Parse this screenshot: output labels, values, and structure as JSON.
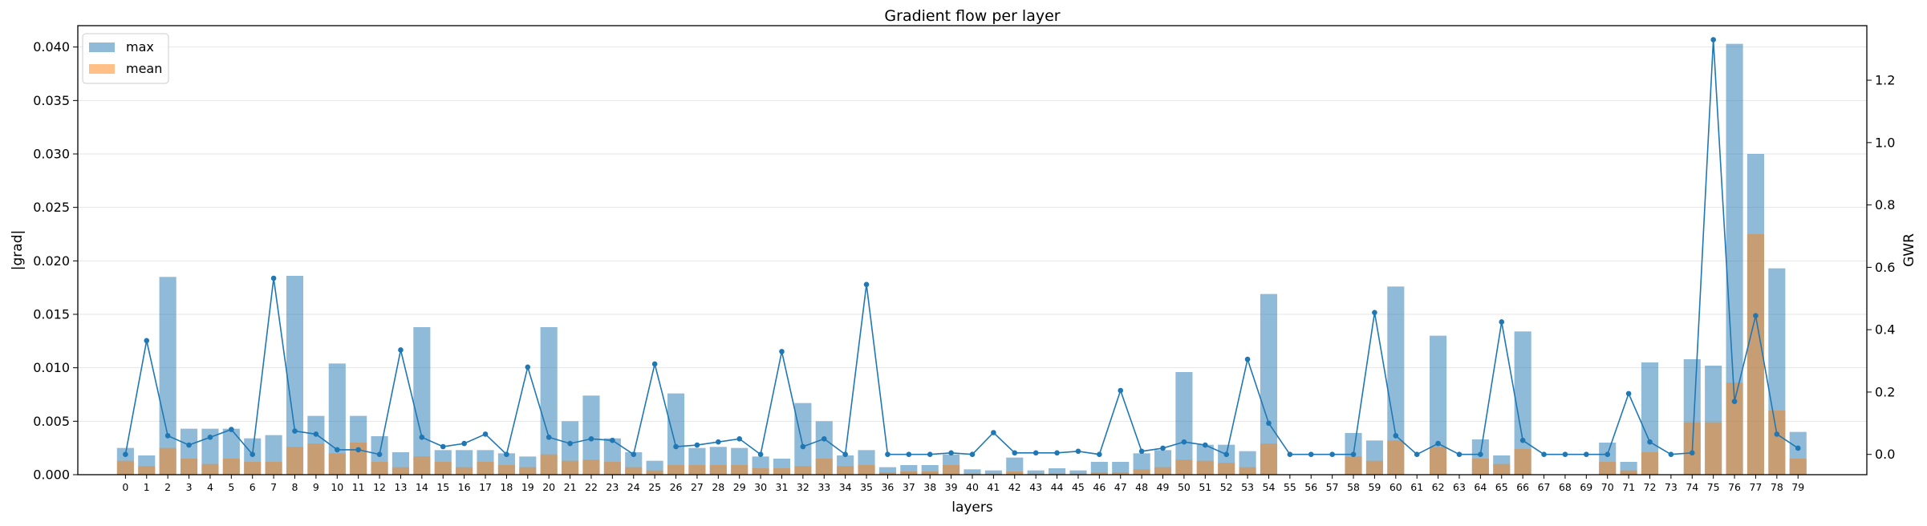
{
  "chart_data": {
    "type": "bar",
    "title": "Gradient flow per layer",
    "xlabel": "layers",
    "ylabel": "|grad|",
    "y2label": "GWR",
    "ylim": [
      0,
      0.042
    ],
    "y2lim": [
      -0.065,
      1.375
    ],
    "yticks": [
      "0.000",
      "0.005",
      "0.010",
      "0.015",
      "0.020",
      "0.025",
      "0.030",
      "0.035",
      "0.040"
    ],
    "y2ticks": [
      "0.0",
      "0.2",
      "0.4",
      "0.6",
      "0.8",
      "1.0",
      "1.2"
    ],
    "grid": "horizontal",
    "legend_position": "top-left",
    "categories": [
      "0",
      "1",
      "2",
      "3",
      "4",
      "5",
      "6",
      "7",
      "8",
      "9",
      "10",
      "11",
      "12",
      "13",
      "14",
      "15",
      "16",
      "17",
      "18",
      "19",
      "20",
      "21",
      "22",
      "23",
      "24",
      "25",
      "26",
      "27",
      "28",
      "29",
      "30",
      "31",
      "32",
      "33",
      "34",
      "35",
      "36",
      "37",
      "38",
      "39",
      "40",
      "41",
      "42",
      "43",
      "44",
      "45",
      "46",
      "47",
      "48",
      "49",
      "50",
      "51",
      "52",
      "53",
      "54",
      "55",
      "56",
      "57",
      "58",
      "59",
      "60",
      "61",
      "62",
      "63",
      "64",
      "65",
      "66",
      "67",
      "68",
      "69",
      "70",
      "71",
      "72",
      "73",
      "74",
      "75",
      "76",
      "77",
      "78",
      "79"
    ],
    "series": [
      {
        "name": "max",
        "kind": "bar",
        "color": "#1f77b4",
        "values": [
          0.0025,
          0.0018,
          0.0185,
          0.0043,
          0.0043,
          0.0043,
          0.0034,
          0.0037,
          0.0186,
          0.0055,
          0.0104,
          0.0055,
          0.0036,
          0.0021,
          0.0138,
          0.0023,
          0.0023,
          0.0023,
          0.002,
          0.0017,
          0.0138,
          0.005,
          0.0074,
          0.0034,
          0.0021,
          0.0013,
          0.0076,
          0.0025,
          0.0026,
          0.0025,
          0.0017,
          0.0015,
          0.0067,
          0.005,
          0.0018,
          0.0023,
          0.0007,
          0.0009,
          0.0009,
          0.0019,
          0.0005,
          0.0004,
          0.0016,
          0.0004,
          0.0006,
          0.0004,
          0.0012,
          0.0012,
          0.002,
          0.0023,
          0.0096,
          0.0028,
          0.0028,
          0.0022,
          0.0169,
          0.0,
          0.0,
          0.0,
          0.0039,
          0.0032,
          0.0176,
          0.0,
          0.013,
          0.0,
          0.0033,
          0.0018,
          0.0134,
          0.0,
          0.0,
          0.0,
          0.003,
          0.0012,
          0.0105,
          0.0,
          0.0108,
          0.0102,
          0.0403,
          0.03,
          0.0193,
          0.004
        ]
      },
      {
        "name": "mean",
        "kind": "bar",
        "color": "#ff7f0e",
        "values": [
          0.0013,
          0.0008,
          0.0025,
          0.0015,
          0.001,
          0.0015,
          0.0012,
          0.0012,
          0.0026,
          0.0029,
          0.002,
          0.003,
          0.0012,
          0.0007,
          0.0017,
          0.0012,
          0.0007,
          0.0012,
          0.0009,
          0.0007,
          0.0019,
          0.0013,
          0.0014,
          0.0012,
          0.0007,
          0.0004,
          0.0009,
          0.0009,
          0.0009,
          0.0009,
          0.0006,
          0.0006,
          0.0008,
          0.0015,
          0.0008,
          0.0009,
          0.0002,
          0.0003,
          0.0003,
          0.0009,
          0.0001,
          0.0001,
          0.0003,
          0.0001,
          0.0001,
          0.0001,
          0.0002,
          0.0002,
          0.0005,
          0.0007,
          0.0014,
          0.0013,
          0.0011,
          0.0007,
          0.0029,
          0.0,
          0.0,
          0.0,
          0.0017,
          0.0013,
          0.0032,
          0.0,
          0.0026,
          0.0,
          0.0015,
          0.001,
          0.0024,
          0.0,
          0.0,
          0.0,
          0.0012,
          0.0004,
          0.0021,
          0.0,
          0.0049,
          0.0049,
          0.0086,
          0.0225,
          0.006,
          0.0015
        ]
      },
      {
        "name": "",
        "kind": "line",
        "axis": "right",
        "color": "#1f77b4",
        "values": [
          0.0,
          0.365,
          0.06,
          0.03,
          0.055,
          0.08,
          0.0,
          0.565,
          0.075,
          0.065,
          0.015,
          0.015,
          0.0,
          0.335,
          0.055,
          0.025,
          0.035,
          0.065,
          0.0,
          0.28,
          0.055,
          0.035,
          0.05,
          0.045,
          0.0,
          0.29,
          0.025,
          0.03,
          0.04,
          0.05,
          0.0,
          0.33,
          0.025,
          0.05,
          0.0,
          0.545,
          0.0,
          0.0,
          0.0,
          0.005,
          0.0,
          0.07,
          0.005,
          0.005,
          0.005,
          0.01,
          0.0,
          0.205,
          0.01,
          0.02,
          0.04,
          0.03,
          0.0,
          0.305,
          0.1,
          0.0,
          0.0,
          0.0,
          0.0,
          0.455,
          0.06,
          0.0,
          0.035,
          0.0,
          0.0,
          0.425,
          0.045,
          0.0,
          0.0,
          0.0,
          0.0,
          0.195,
          0.04,
          0.0,
          0.005,
          1.33,
          0.17,
          0.445,
          0.065,
          0.02
        ]
      }
    ]
  }
}
